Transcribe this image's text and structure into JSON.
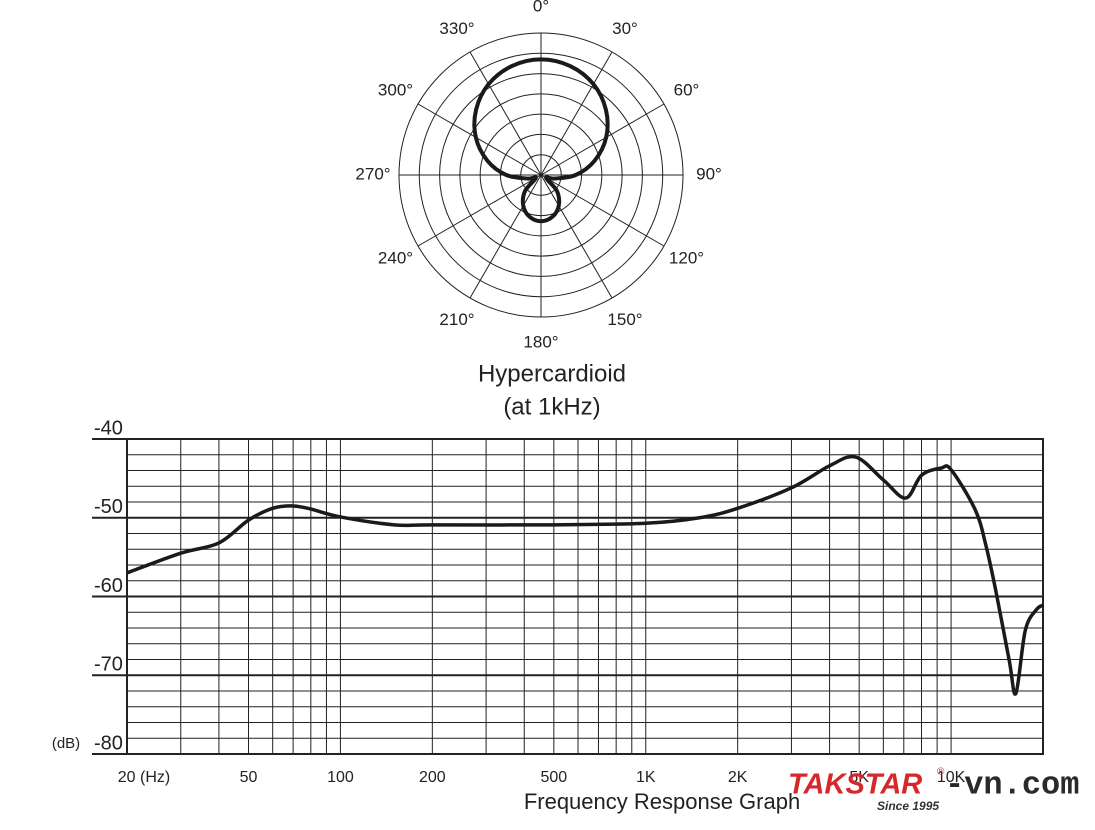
{
  "chart_data": [
    {
      "type": "polar",
      "title": "Hypercardioid",
      "subtitle": "(at 1kHz)",
      "color": "#1a1a1a",
      "angles": [
        0,
        15,
        30,
        45,
        60,
        75,
        90,
        105,
        120,
        135,
        150,
        165,
        180,
        195,
        210,
        225,
        240,
        255,
        270,
        285,
        300,
        315,
        330,
        345
      ],
      "values": [
        5.7,
        5.56,
        5.17,
        4.53,
        3.71,
        2.74,
        1.71,
        0.68,
        0.29,
        1.11,
        1.75,
        2.14,
        2.28,
        2.14,
        1.75,
        1.11,
        0.29,
        0.68,
        1.71,
        2.74,
        3.71,
        4.53,
        5.17,
        5.56
      ],
      "rlim": [
        0,
        7
      ],
      "rticks": [
        1,
        2,
        3,
        4,
        5,
        6,
        7
      ],
      "theta_ticks": [
        {
          "value": 0,
          "label": "0°"
        },
        {
          "value": 30,
          "label": "30°"
        },
        {
          "value": 60,
          "label": "60°"
        },
        {
          "value": 90,
          "label": "90°"
        },
        {
          "value": 120,
          "label": "120°"
        },
        {
          "value": 150,
          "label": "150°"
        },
        {
          "value": 180,
          "label": "180°"
        },
        {
          "value": 210,
          "label": "210°"
        },
        {
          "value": 240,
          "label": "240°"
        },
        {
          "value": 270,
          "label": "270°"
        },
        {
          "value": 300,
          "label": "300°"
        },
        {
          "value": 330,
          "label": "330°"
        }
      ]
    },
    {
      "type": "line",
      "xlabel": "Frequency Response Graph",
      "ylabel": "(dB)",
      "color": "#1a1a1a",
      "xlog": true,
      "grid": true,
      "x": [
        20,
        30,
        40,
        50,
        60,
        70,
        80,
        100,
        150,
        200,
        500,
        1000,
        1500,
        2000,
        3000,
        4000,
        4870,
        6000,
        7100,
        8000,
        9260,
        10000,
        12000,
        13000,
        14000,
        15500,
        16300,
        17500,
        19000,
        20000
      ],
      "values": [
        -57.0,
        -54.5,
        -53.2,
        -50.3,
        -48.8,
        -48.5,
        -48.9,
        -49.9,
        -50.9,
        -50.9,
        -50.9,
        -50.7,
        -50.0,
        -48.8,
        -46.2,
        -43.4,
        -42.3,
        -45.2,
        -47.5,
        -44.6,
        -43.7,
        -43.9,
        -49.0,
        -53.5,
        -59.2,
        -68.1,
        -72.3,
        -64.3,
        -61.7,
        -61.1
      ],
      "xlim": [
        20,
        20000
      ],
      "ylim": [
        -80,
        -40
      ],
      "xticks": [
        {
          "value": 20,
          "label": "20 (Hz)"
        },
        50,
        100,
        200,
        500,
        {
          "value": 1000,
          "label": "1K"
        },
        {
          "value": 2000,
          "label": "2K"
        },
        {
          "value": 5000,
          "label": "5K"
        },
        {
          "value": 10000,
          "label": "10K"
        }
      ],
      "x_minor_ticks": [
        30,
        40,
        60,
        70,
        80,
        90,
        300,
        400,
        600,
        700,
        800,
        900,
        3000,
        4000,
        6000,
        7000,
        8000,
        9000
      ],
      "yticks": [
        -40,
        -50,
        -60,
        -70,
        -80
      ],
      "y_minor_ticks": [
        -42,
        -44,
        -46,
        -48,
        -52,
        -54,
        -56,
        -58,
        -62,
        -64,
        -66,
        -68,
        -72,
        -74,
        -76,
        -78
      ]
    }
  ],
  "watermark": {
    "brand": "TAKSTAR",
    "mark": "®",
    "suffix": "-vn.com",
    "tagline": "Since 1995"
  }
}
